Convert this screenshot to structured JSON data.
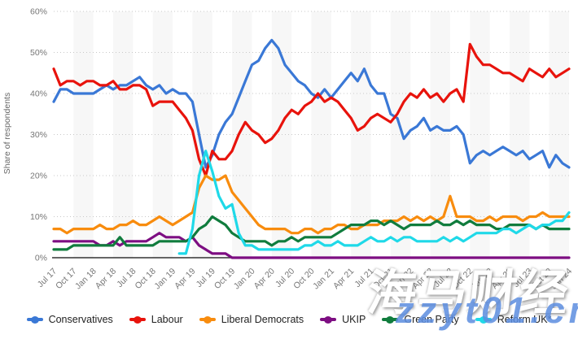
{
  "watermark": {
    "line1": "海马财经",
    "line2": "zzyt01.cn"
  },
  "chart_data": {
    "type": "line",
    "title": "",
    "xlabel": "",
    "ylabel": "Share of respondents",
    "ylim": [
      0,
      60
    ],
    "yticks": [
      "0%",
      "10%",
      "20%",
      "30%",
      "40%",
      "50%",
      "60%"
    ],
    "grid": "horizontal-dotted",
    "legend_position": "bottom",
    "x_tick_labels": [
      "Jul 17",
      "Oct 17",
      "Jan 18",
      "Apr 18",
      "Jul 18",
      "Oct 18",
      "Jan 19",
      "Apr 19",
      "Jul 19",
      "Oct 19",
      "Jan 20",
      "Apr 20",
      "Jul 20",
      "Oct 20",
      "Jan 21",
      "Apr 21",
      "Jul 21",
      "Oct 21",
      "Jan 22",
      "Apr 22",
      "Jul 22",
      "Oct 22",
      "Jan 23",
      "Apr 23",
      "Jul 23",
      "Oct 23",
      "Jan 24"
    ],
    "x_unit": "monthly from Jul 2017 to Jan 2024",
    "series": [
      {
        "name": "Conservatives",
        "color": "#3A78D6",
        "values": [
          38,
          41,
          41,
          40,
          40,
          40,
          40,
          41,
          42,
          41,
          42,
          42,
          43,
          44,
          42,
          41,
          42,
          40,
          41,
          40,
          40,
          38,
          30,
          22,
          25,
          30,
          33,
          35,
          39,
          43,
          47,
          48,
          51,
          53,
          51,
          47,
          45,
          43,
          42,
          40,
          39,
          41,
          39,
          41,
          43,
          45,
          43,
          46,
          42,
          40,
          40,
          35,
          34,
          29,
          31,
          32,
          34,
          31,
          32,
          31,
          31,
          32,
          30,
          23,
          25,
          26,
          25,
          26,
          27,
          26,
          25,
          26,
          24,
          25,
          26,
          22,
          25,
          23,
          22
        ]
      },
      {
        "name": "Labour",
        "color": "#E8130C",
        "values": [
          46,
          42,
          43,
          43,
          42,
          43,
          43,
          42,
          42,
          43,
          41,
          41,
          42,
          42,
          41,
          37,
          38,
          38,
          38,
          36,
          34,
          31,
          24,
          20,
          26,
          24,
          24,
          26,
          30,
          33,
          31,
          30,
          28,
          29,
          31,
          34,
          36,
          35,
          37,
          38,
          40,
          38,
          39,
          38,
          36,
          34,
          31,
          32,
          34,
          35,
          34,
          33,
          35,
          38,
          40,
          39,
          41,
          39,
          40,
          38,
          40,
          41,
          38,
          52,
          49,
          47,
          47,
          46,
          45,
          45,
          44,
          43,
          46,
          45,
          44,
          46,
          44,
          45,
          46
        ]
      },
      {
        "name": "Liberal Democrats",
        "color": "#F88C0E",
        "values": [
          7,
          7,
          6,
          7,
          7,
          7,
          7,
          8,
          7,
          7,
          8,
          8,
          9,
          8,
          8,
          9,
          10,
          9,
          8,
          9,
          10,
          11,
          17,
          20,
          19,
          19,
          20,
          16,
          14,
          12,
          10,
          8,
          7,
          7,
          7,
          7,
          6,
          6,
          7,
          7,
          6,
          7,
          7,
          8,
          8,
          7,
          7,
          8,
          8,
          8,
          9,
          9,
          9,
          10,
          9,
          10,
          9,
          10,
          9,
          10,
          15,
          10,
          10,
          10,
          9,
          9,
          10,
          9,
          10,
          10,
          10,
          9,
          10,
          10,
          11,
          10,
          10,
          10,
          10
        ]
      },
      {
        "name": "UKIP",
        "color": "#7D0E82",
        "values": [
          4,
          4,
          4,
          4,
          4,
          4,
          4,
          3,
          3,
          4,
          3,
          4,
          4,
          4,
          4,
          5,
          6,
          5,
          5,
          5,
          4,
          5,
          3,
          2,
          1,
          1,
          1,
          0,
          0,
          0,
          0,
          0,
          0,
          0,
          0,
          0,
          0,
          0,
          0,
          0,
          0,
          0,
          0,
          0,
          0,
          0,
          0,
          0,
          0,
          0,
          0,
          0,
          0,
          0,
          0,
          0,
          0,
          0,
          0,
          0,
          0,
          0,
          0,
          0,
          0,
          0,
          0,
          0,
          0,
          0,
          0,
          0,
          0,
          0,
          0,
          0,
          0,
          0,
          0
        ]
      },
      {
        "name": "Green Party",
        "color": "#107C3D",
        "values": [
          2,
          2,
          2,
          3,
          3,
          3,
          3,
          3,
          3,
          3,
          5,
          3,
          3,
          3,
          3,
          3,
          4,
          4,
          4,
          4,
          4,
          5,
          7,
          8,
          10,
          9,
          8,
          6,
          5,
          4,
          4,
          4,
          4,
          3,
          4,
          4,
          5,
          4,
          5,
          5,
          5,
          5,
          5,
          6,
          7,
          8,
          8,
          8,
          9,
          9,
          8,
          9,
          8,
          7,
          8,
          8,
          8,
          8,
          9,
          8,
          8,
          9,
          8,
          9,
          8,
          8,
          8,
          7,
          7,
          8,
          8,
          8,
          8,
          7,
          8,
          7,
          7,
          7,
          7
        ]
      },
      {
        "name": "Reform UK*",
        "color": "#1FD9E8",
        "values": [
          null,
          null,
          null,
          null,
          null,
          null,
          null,
          null,
          null,
          null,
          null,
          null,
          null,
          null,
          null,
          null,
          null,
          null,
          null,
          1,
          1,
          7,
          20,
          26,
          21,
          15,
          12,
          13,
          6,
          3,
          3,
          2,
          2,
          2,
          2,
          2,
          2,
          2,
          3,
          3,
          4,
          3,
          3,
          4,
          3,
          3,
          3,
          4,
          5,
          4,
          4,
          5,
          4,
          5,
          5,
          4,
          4,
          4,
          4,
          5,
          4,
          5,
          4,
          5,
          6,
          6,
          6,
          6,
          7,
          7,
          6,
          7,
          8,
          7,
          8,
          8,
          9,
          9,
          11
        ]
      }
    ]
  },
  "style": {
    "band_color": "#f7f7f7",
    "grid_color": "#c8c8c8",
    "axis_color": "#333333",
    "tick_text_color": "#767676"
  }
}
